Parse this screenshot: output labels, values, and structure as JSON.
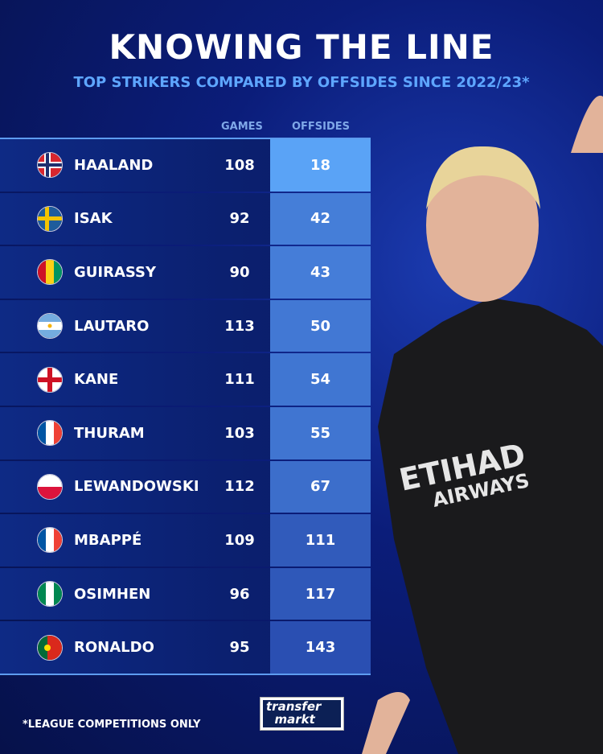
{
  "title": "KNOWING THE LINE",
  "subtitle": "TOP STRIKERS COMPARED BY OFFSIDES SINCE 2022/23*",
  "footnote": "*LEAGUE COMPETITIONS ONLY",
  "logo": {
    "line1": "transfer",
    "line2": "markt"
  },
  "chart_data": {
    "type": "table",
    "columns": [
      "GAMES",
      "OFFSIDES"
    ],
    "rows": [
      {
        "player": "HAALAND",
        "flag": "norway",
        "games": "108",
        "offsides": "18"
      },
      {
        "player": "ISAK",
        "flag": "sweden",
        "games": "92",
        "offsides": "42"
      },
      {
        "player": "GUIRASSY",
        "flag": "guinea",
        "games": "90",
        "offsides": "43"
      },
      {
        "player": "LAUTARO",
        "flag": "argentina",
        "games": "113",
        "offsides": "50"
      },
      {
        "player": "KANE",
        "flag": "england",
        "games": "111",
        "offsides": "54"
      },
      {
        "player": "THURAM",
        "flag": "france",
        "games": "103",
        "offsides": "55"
      },
      {
        "player": "LEWANDOWSKI",
        "flag": "poland",
        "games": "112",
        "offsides": "67"
      },
      {
        "player": "MBAPPÉ",
        "flag": "france",
        "games": "109",
        "offsides": "111"
      },
      {
        "player": "OSIMHEN",
        "flag": "nigeria",
        "games": "96",
        "offsides": "117"
      },
      {
        "player": "RONALDO",
        "flag": "portugal",
        "games": "95",
        "offsides": "143"
      }
    ]
  },
  "colors": {
    "offsides_low": "#5aa3f6",
    "offsides_high": "#2a4fb2",
    "accent": "#5ea6ff"
  }
}
